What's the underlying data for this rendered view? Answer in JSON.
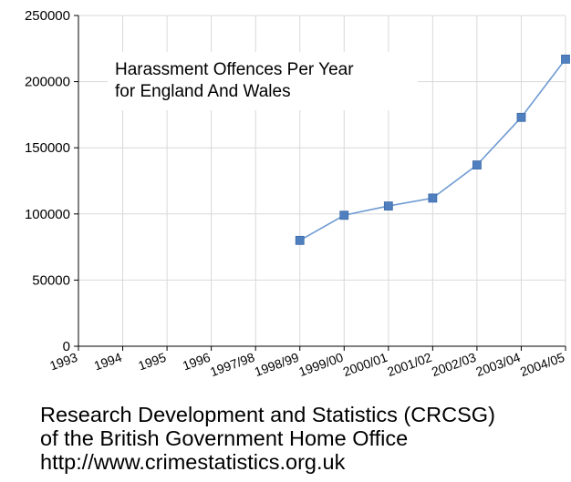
{
  "chart_data": {
    "type": "line",
    "title": "Harassment Offences Per Year for England And Wales",
    "title_lines": [
      "Harassment Offences Per Year",
      "for England And Wales"
    ],
    "xlabel": "",
    "ylabel": "",
    "categories": [
      "1993",
      "1994",
      "1995",
      "1996",
      "1997/98",
      "1998/99",
      "1999/00",
      "2000/01",
      "2001/02",
      "2002/03",
      "2003/04",
      "2004/05"
    ],
    "values": [
      null,
      null,
      null,
      null,
      null,
      80000,
      99000,
      106000,
      112000,
      137000,
      173000,
      217000
    ],
    "ylim": [
      0,
      250000
    ],
    "yticks": [
      0,
      50000,
      100000,
      150000,
      200000,
      250000
    ],
    "ytick_labels": [
      "0",
      "50000",
      "100000",
      "150000",
      "200000",
      "250000"
    ],
    "grid": true,
    "legend": "none",
    "colors": {
      "line": "#6f9bd2",
      "marker": "#4f7fbf",
      "grid": "#d9d9d9",
      "axis": "#000000"
    }
  },
  "credit": {
    "line1": "Research Development and Statistics (CRCSG)",
    "line2": "of the British Government Home Office",
    "line3": "http://www.crimestatistics.org.uk"
  }
}
